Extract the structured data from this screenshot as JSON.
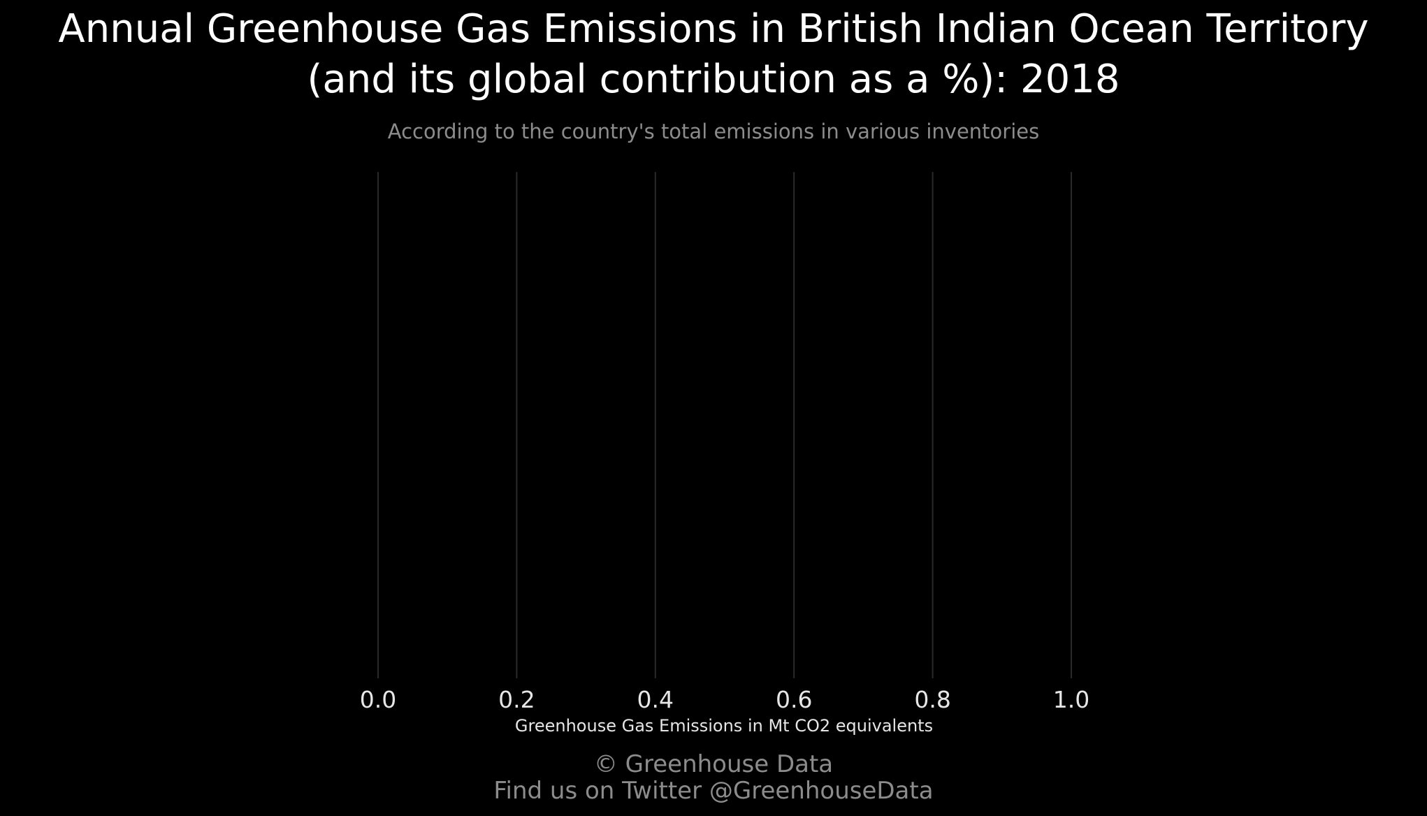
{
  "chart_data": {
    "type": "bar",
    "title": "Annual Greenhouse Gas Emissions in British Indian Ocean Territory\n(and its global contribution as a %): 2018",
    "subtitle": "According to the country's total emissions in various inventories",
    "xlabel": "Greenhouse Gas Emissions in Mt CO2 equivalents",
    "ylabel": "",
    "categories": [],
    "values": [],
    "xlim": [
      0,
      1
    ],
    "xticks": [
      "0.0",
      "0.2",
      "0.4",
      "0.6",
      "0.8",
      "1.0"
    ],
    "grid": "vertical",
    "legend": "none"
  },
  "caption": {
    "line1": "© Greenhouse Data",
    "line2": "Find us on Twitter @GreenhouseData"
  },
  "colors": {
    "background": "#000000",
    "title": "#ffffff",
    "subtitle": "#8c8c8c",
    "gridline": "#2a2a2a",
    "tick_label": "#e6e6e6",
    "axis_label": "#e6e6e6",
    "caption": "#8c8c8c"
  }
}
